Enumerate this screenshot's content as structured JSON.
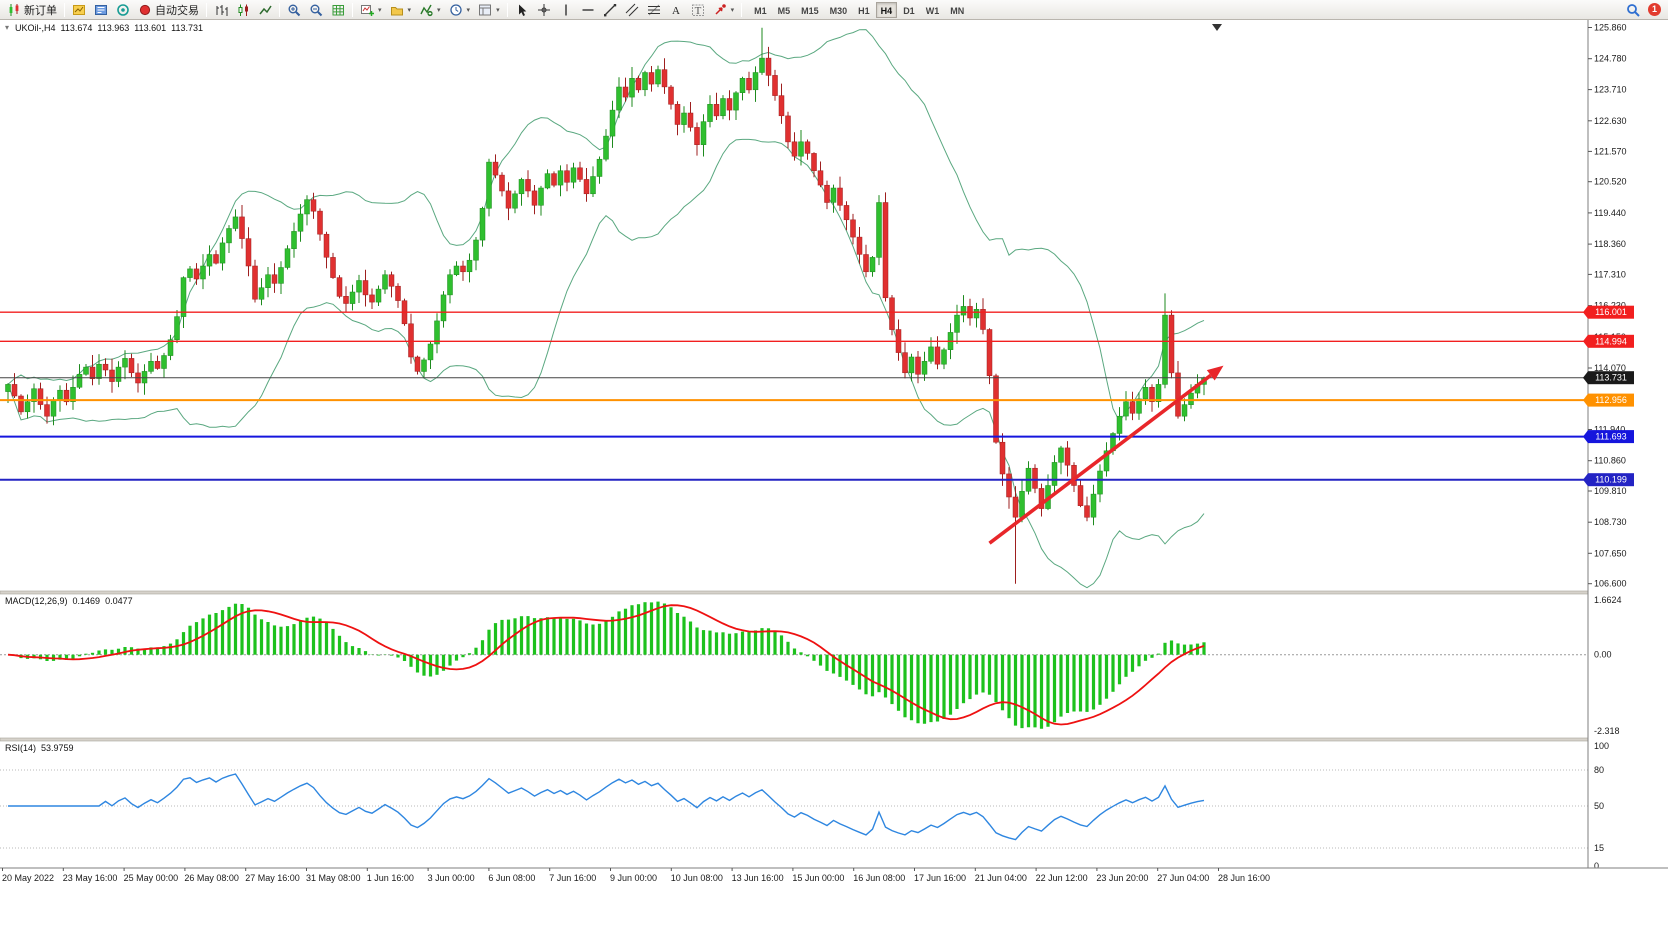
{
  "toolbar": {
    "new_order_label": "新订单",
    "auto_trading_label": "自动交易",
    "timeframes": [
      "M1",
      "M5",
      "M15",
      "M30",
      "H1",
      "H4",
      "D1",
      "W1",
      "MN"
    ],
    "active_timeframe": "H4",
    "notification_count": "1"
  },
  "main_chart": {
    "symbol_line": {
      "symbol": "UKOil-,H4",
      "open": "113.674",
      "high": "113.963",
      "low": "113.601",
      "close": "113.731"
    }
  },
  "macd_panel": {
    "label": "MACD(12,26,9)",
    "main_value": "0.1469",
    "signal_value": "0.0477",
    "axis_labels": [
      "1.6624",
      "0.00",
      "-2.318"
    ]
  },
  "rsi_panel": {
    "label": "RSI(14)",
    "value": "53.9759",
    "axis_labels": [
      "100",
      "80",
      "50",
      "15",
      "0"
    ],
    "levels": [
      80,
      50,
      15
    ]
  },
  "chart_data": {
    "type": "candlestick",
    "symbol": "UKOil-",
    "timeframe": "H4",
    "price_axis_range": [
      106.45,
      126.05
    ],
    "price_axis_ticks": [
      "125.860",
      "124.780",
      "123.710",
      "122.630",
      "121.570",
      "120.520",
      "119.440",
      "118.360",
      "117.310",
      "116.230",
      "115.150",
      "114.070",
      "113.010",
      "111.940",
      "110.860",
      "109.810",
      "108.730",
      "107.650",
      "106.600"
    ],
    "closes": [
      113.5,
      113.1,
      112.55,
      112.9,
      113.35,
      112.8,
      112.4,
      112.95,
      113.3,
      112.9,
      113.4,
      113.85,
      114.1,
      113.7,
      114.2,
      114.0,
      113.6,
      114.1,
      114.4,
      113.9,
      113.55,
      113.95,
      114.3,
      114.05,
      114.5,
      115.05,
      115.85,
      117.2,
      117.5,
      117.15,
      117.6,
      118.0,
      117.7,
      118.4,
      118.9,
      119.3,
      118.55,
      117.6,
      116.45,
      116.85,
      117.3,
      117.0,
      117.55,
      118.2,
      118.8,
      119.4,
      119.9,
      119.5,
      118.7,
      117.9,
      117.2,
      116.55,
      116.3,
      116.7,
      117.1,
      116.6,
      116.35,
      116.8,
      117.3,
      116.9,
      116.4,
      115.6,
      114.45,
      113.95,
      114.35,
      114.9,
      115.7,
      116.6,
      117.3,
      117.6,
      117.4,
      117.8,
      118.5,
      119.6,
      121.2,
      120.75,
      120.2,
      119.6,
      120.1,
      120.6,
      120.2,
      119.7,
      120.3,
      120.8,
      120.4,
      120.9,
      120.5,
      121.0,
      120.6,
      120.1,
      120.7,
      121.3,
      122.1,
      123.0,
      123.8,
      123.45,
      124.1,
      123.7,
      124.3,
      123.9,
      124.4,
      123.8,
      123.2,
      122.5,
      122.9,
      122.4,
      121.8,
      122.6,
      123.2,
      122.8,
      123.4,
      123.0,
      123.6,
      124.1,
      123.7,
      124.3,
      124.8,
      124.2,
      123.5,
      122.8,
      121.9,
      121.4,
      121.9,
      121.5,
      120.9,
      120.4,
      119.8,
      120.3,
      119.7,
      119.2,
      118.6,
      118.0,
      117.4,
      117.9,
      119.8,
      116.5,
      115.4,
      114.6,
      113.9,
      114.45,
      113.85,
      114.3,
      114.8,
      114.2,
      114.7,
      115.3,
      115.9,
      116.2,
      115.8,
      116.1,
      115.4,
      113.8,
      111.5,
      110.4,
      109.6,
      108.9,
      109.8,
      110.6,
      109.9,
      109.2,
      110.0,
      110.8,
      111.3,
      110.7,
      110.0,
      109.3,
      108.9,
      109.7,
      110.5,
      111.2,
      111.8,
      112.4,
      112.9,
      112.5,
      113.0,
      113.4,
      112.9,
      113.5,
      115.9,
      113.9,
      112.4,
      112.8,
      113.2,
      113.5,
      113.731
    ],
    "wick_overrides": {
      "116": {
        "high": 125.85
      },
      "155": {
        "low": 106.6
      },
      "178": {
        "high": 116.65
      }
    },
    "bollinger": {
      "period": 20,
      "deviation": 2
    },
    "horizontal_lines": [
      {
        "price": 116.001,
        "label": "116.001",
        "color": "#f21f1f",
        "width": 1.4
      },
      {
        "price": 114.994,
        "label": "114.994",
        "color": "#f21f1f",
        "width": 1.4
      },
      {
        "price": 113.731,
        "label": "113.731",
        "color": "#444444",
        "box": "#1a1a1a",
        "width": 1,
        "current_price": true
      },
      {
        "price": 112.956,
        "label": "112.956",
        "color": "#ff9100",
        "width": 2
      },
      {
        "price": 111.693,
        "label": "111.693",
        "color": "#1515dd",
        "width": 2
      },
      {
        "price": 110.199,
        "label": "110.199",
        "color": "#2323c4",
        "width": 2
      }
    ],
    "trend_arrow": {
      "from_index": 151,
      "from_price": 108.0,
      "to_index": 187,
      "to_price": 114.15,
      "color": "#e8262a"
    },
    "time_axis_labels": [
      "20 May 2022",
      "23 May 16:00",
      "25 May 00:00",
      "26 May 08:00",
      "27 May 16:00",
      "31 May 08:00",
      "1 Jun 16:00",
      "3 Jun 00:00",
      "6 Jun 08:00",
      "7 Jun 16:00",
      "9 Jun 00:00",
      "10 Jun 08:00",
      "13 Jun 16:00",
      "15 Jun 00:00",
      "16 Jun 08:00",
      "17 Jun 16:00",
      "21 Jun 04:00",
      "22 Jun 12:00",
      "23 Jun 20:00",
      "27 Jun 04:00",
      "28 Jun 16:00"
    ],
    "colors": {
      "up": "#2fbf2f",
      "up_stroke": "#1e8a1e",
      "down": "#e03030",
      "down_stroke": "#9e1f1f",
      "bollinger": "#5aa880",
      "macd_histogram": "#1dc11d",
      "macd_signal": "#ee1111",
      "rsi_line": "#2e86e0"
    }
  }
}
